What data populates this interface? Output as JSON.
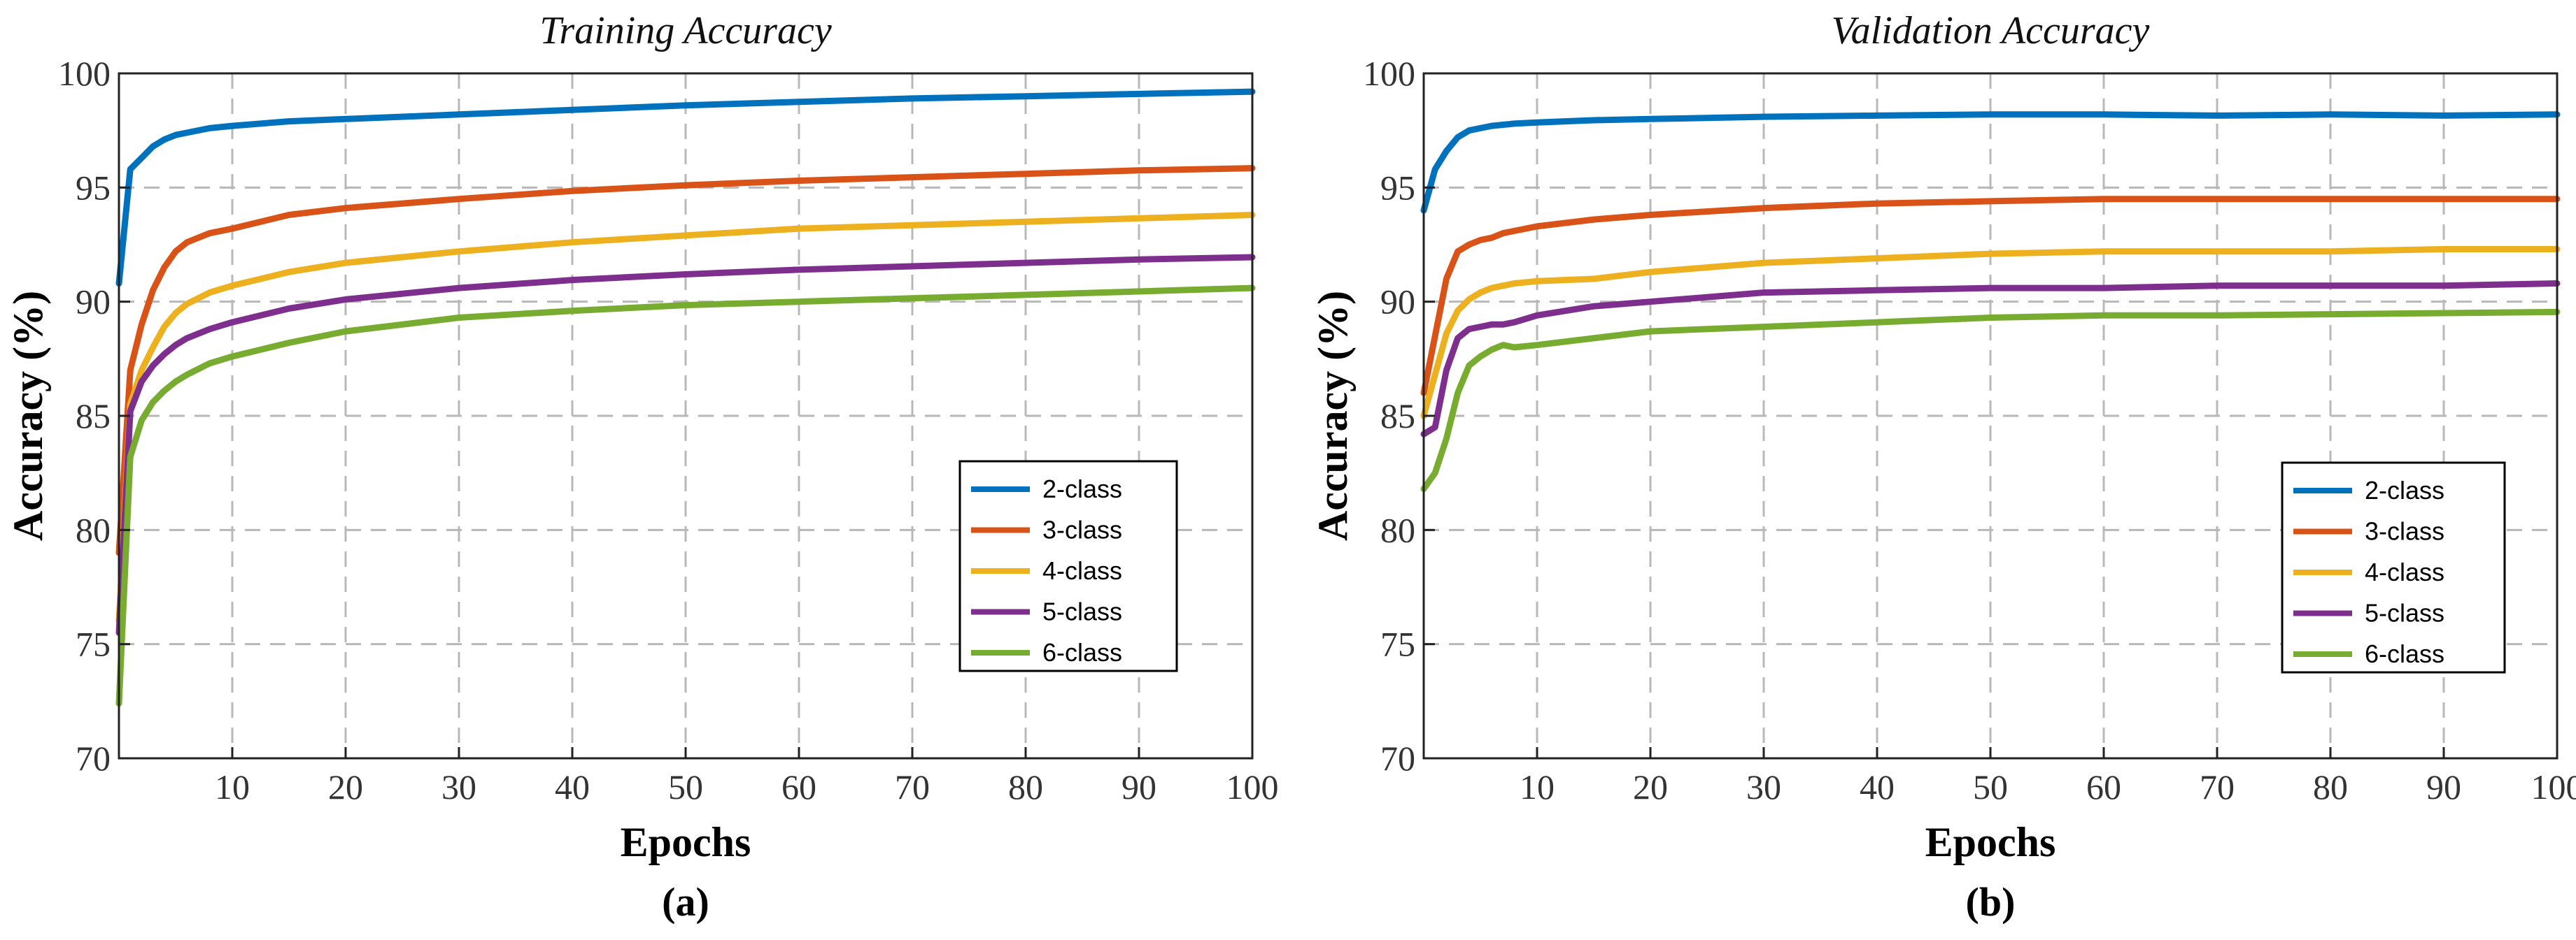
{
  "chart_data": [
    {
      "type": "line",
      "title": "Training Accuracy",
      "caption": "(a)",
      "xlabel": "Epochs",
      "ylabel": "Accuracy (%)",
      "xlim": [
        0,
        100
      ],
      "ylim": [
        70,
        100
      ],
      "xticks": [
        10,
        20,
        30,
        40,
        50,
        60,
        70,
        80,
        90,
        100
      ],
      "yticks": [
        70,
        75,
        80,
        85,
        90,
        95,
        100
      ],
      "grid": true,
      "legend_position": "lower-right",
      "x": [
        0,
        1,
        2,
        3,
        4,
        5,
        6,
        8,
        10,
        15,
        20,
        30,
        40,
        50,
        60,
        70,
        80,
        90,
        100
      ],
      "series": [
        {
          "name": "2-class",
          "color": "#0072BD",
          "values": [
            90.8,
            95.8,
            96.3,
            96.8,
            97.1,
            97.3,
            97.4,
            97.6,
            97.7,
            97.9,
            98.0,
            98.2,
            98.4,
            98.6,
            98.75,
            98.9,
            99.0,
            99.1,
            99.2
          ]
        },
        {
          "name": "3-class",
          "color": "#D95319",
          "values": [
            79.0,
            87.0,
            89.0,
            90.5,
            91.5,
            92.2,
            92.6,
            93.0,
            93.2,
            93.8,
            94.1,
            94.5,
            94.85,
            95.1,
            95.3,
            95.45,
            95.6,
            95.75,
            95.85
          ]
        },
        {
          "name": "4-class",
          "color": "#EDB120",
          "values": [
            76.0,
            85.5,
            87.0,
            88.0,
            88.9,
            89.5,
            89.9,
            90.4,
            90.7,
            91.3,
            91.7,
            92.2,
            92.6,
            92.9,
            93.2,
            93.35,
            93.5,
            93.65,
            93.8
          ]
        },
        {
          "name": "5-class",
          "color": "#7E2F8E",
          "values": [
            75.5,
            85.2,
            86.5,
            87.2,
            87.7,
            88.1,
            88.4,
            88.8,
            89.1,
            89.7,
            90.1,
            90.6,
            90.95,
            91.2,
            91.4,
            91.55,
            91.7,
            91.85,
            91.95
          ]
        },
        {
          "name": "6-class",
          "color": "#77AC30",
          "values": [
            72.4,
            83.2,
            84.8,
            85.6,
            86.1,
            86.5,
            86.8,
            87.3,
            87.6,
            88.2,
            88.7,
            89.3,
            89.6,
            89.85,
            90.0,
            90.15,
            90.3,
            90.45,
            90.6
          ]
        }
      ]
    },
    {
      "type": "line",
      "title": "Validation Accuracy",
      "caption": "(b)",
      "xlabel": "Epochs",
      "ylabel": "Accuracy (%)",
      "xlim": [
        0,
        100
      ],
      "ylim": [
        70,
        100
      ],
      "xticks": [
        10,
        20,
        30,
        40,
        50,
        60,
        70,
        80,
        90,
        100
      ],
      "yticks": [
        70,
        75,
        80,
        85,
        90,
        95,
        100
      ],
      "grid": true,
      "legend_position": "lower-right",
      "x": [
        0,
        1,
        2,
        3,
        4,
        5,
        6,
        7,
        8,
        10,
        15,
        20,
        30,
        40,
        50,
        60,
        70,
        80,
        90,
        100
      ],
      "series": [
        {
          "name": "2-class",
          "color": "#0072BD",
          "values": [
            94.0,
            95.8,
            96.6,
            97.2,
            97.5,
            97.6,
            97.7,
            97.75,
            97.8,
            97.85,
            97.95,
            98.0,
            98.1,
            98.15,
            98.2,
            98.2,
            98.15,
            98.2,
            98.15,
            98.2
          ]
        },
        {
          "name": "3-class",
          "color": "#D95319",
          "values": [
            86.0,
            88.5,
            91.0,
            92.2,
            92.5,
            92.7,
            92.8,
            93.0,
            93.1,
            93.3,
            93.6,
            93.8,
            94.1,
            94.3,
            94.4,
            94.5,
            94.5,
            94.5,
            94.5,
            94.5
          ]
        },
        {
          "name": "4-class",
          "color": "#EDB120",
          "values": [
            85.0,
            86.8,
            88.6,
            89.6,
            90.1,
            90.4,
            90.6,
            90.7,
            90.8,
            90.9,
            91.0,
            91.3,
            91.7,
            91.9,
            92.1,
            92.2,
            92.2,
            92.2,
            92.3,
            92.3
          ]
        },
        {
          "name": "5-class",
          "color": "#7E2F8E",
          "values": [
            84.2,
            84.5,
            87.0,
            88.4,
            88.8,
            88.9,
            89.0,
            89.0,
            89.1,
            89.4,
            89.8,
            90.0,
            90.4,
            90.5,
            90.6,
            90.6,
            90.7,
            90.7,
            90.7,
            90.8
          ]
        },
        {
          "name": "6-class",
          "color": "#77AC30",
          "values": [
            81.8,
            82.5,
            84.0,
            86.0,
            87.2,
            87.6,
            87.9,
            88.1,
            88.0,
            88.1,
            88.4,
            88.7,
            88.9,
            89.1,
            89.3,
            89.4,
            89.4,
            89.45,
            89.5,
            89.55
          ]
        }
      ]
    }
  ]
}
